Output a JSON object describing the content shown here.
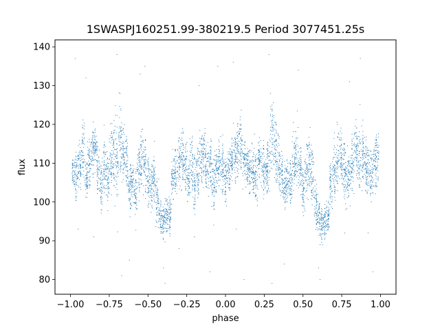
{
  "chart_data": {
    "type": "scatter",
    "title": "1SWASPJ160251.99-380219.5 Period 3077451.25s",
    "xlabel": "phase",
    "ylabel": "flux",
    "xlim": [
      -1.1,
      1.1
    ],
    "ylim": [
      76.2,
      141.8
    ],
    "x_ticks": [
      -1.0,
      -0.75,
      -0.5,
      -0.25,
      0.0,
      0.25,
      0.5,
      0.75,
      1.0
    ],
    "x_tick_labels": [
      "−1.00",
      "−0.75",
      "−0.50",
      "−0.25",
      "0.00",
      "0.25",
      "0.50",
      "0.75",
      "1.00"
    ],
    "y_ticks": [
      80,
      90,
      100,
      110,
      120,
      130,
      140
    ],
    "y_tick_labels": [
      "80",
      "90",
      "100",
      "110",
      "120",
      "130",
      "140"
    ],
    "grid": false,
    "legend": "none",
    "marker_color": "#1f77b4",
    "series": [
      {
        "x": [
          -0.98,
          -0.96,
          -0.94,
          -0.92,
          -0.9,
          -0.88,
          -0.86,
          -0.84,
          -0.82,
          -0.8,
          -0.78,
          -0.76,
          -0.74,
          -0.72,
          -0.7,
          -0.68,
          -0.66,
          -0.64,
          -0.62,
          -0.6,
          -0.58,
          -0.56,
          -0.54,
          -0.52,
          -0.5,
          -0.48,
          -0.46,
          -0.44,
          -0.42,
          -0.4,
          -0.38,
          -0.36,
          -0.34,
          -0.32,
          -0.3,
          -0.28,
          -0.26,
          -0.24,
          -0.22,
          -0.2,
          -0.18,
          -0.16,
          -0.14,
          -0.12,
          -0.1,
          -0.08,
          -0.06,
          -0.04,
          -0.02,
          0.0,
          0.02,
          0.04,
          0.06,
          0.08,
          0.1,
          0.12,
          0.14,
          0.16,
          0.18,
          0.2,
          0.22,
          0.24,
          0.26,
          0.28,
          0.3,
          0.32,
          0.34,
          0.36,
          0.38,
          0.4,
          0.42,
          0.44,
          0.46,
          0.48,
          0.5,
          0.52,
          0.54,
          0.56,
          0.58,
          0.6,
          0.62,
          0.64,
          0.66,
          0.68,
          0.7,
          0.72,
          0.74,
          0.76,
          0.78,
          0.8,
          0.82,
          0.84,
          0.86,
          0.88,
          0.9,
          0.92,
          0.94,
          0.96,
          0.98
        ],
        "y": [
          108,
          107,
          109,
          114,
          106,
          110,
          113,
          115,
          108,
          104,
          109,
          106,
          111,
          113,
          110,
          116,
          112,
          110,
          104,
          105,
          102,
          107,
          112,
          109,
          105,
          104,
          106,
          100,
          96,
          95,
          97,
          96,
          106,
          108,
          110,
          111,
          109,
          106,
          110,
          104,
          107,
          111,
          112,
          109,
          110,
          105,
          108,
          110,
          109,
          106,
          108,
          111,
          112,
          113,
          115,
          110,
          109,
          108,
          107,
          106,
          111,
          109,
          108,
          110,
          117,
          113,
          110,
          107,
          104,
          106,
          105,
          110,
          111,
          108,
          103,
          108,
          110,
          107,
          100,
          96,
          94,
          95,
          96,
          104,
          108,
          110,
          112,
          109,
          106,
          107,
          109,
          113,
          111,
          112,
          110,
          108,
          107,
          109,
          111
        ],
        "spread": [
          4,
          6,
          5,
          6,
          4,
          5,
          5,
          4,
          5,
          6,
          6,
          5,
          7,
          9,
          8,
          7,
          6,
          6,
          5,
          5,
          5,
          6,
          7,
          6,
          6,
          5,
          5,
          5,
          4,
          4,
          4,
          4,
          5,
          5,
          6,
          6,
          5,
          5,
          6,
          7,
          6,
          5,
          5,
          5,
          6,
          6,
          5,
          5,
          6,
          5,
          5,
          5,
          6,
          6,
          6,
          5,
          5,
          5,
          5,
          5,
          5,
          5,
          5,
          6,
          8,
          7,
          6,
          5,
          5,
          5,
          5,
          6,
          6,
          6,
          5,
          6,
          6,
          6,
          5,
          4,
          4,
          4,
          4,
          5,
          6,
          6,
          6,
          6,
          6,
          5,
          6,
          6,
          6,
          6,
          6,
          5,
          5,
          6,
          6
        ]
      }
    ],
    "outliers": [
      {
        "x": -0.97,
        "y": 137
      },
      {
        "x": -0.95,
        "y": 93
      },
      {
        "x": -0.9,
        "y": 132
      },
      {
        "x": -0.85,
        "y": 91
      },
      {
        "x": -0.7,
        "y": 138
      },
      {
        "x": -0.68,
        "y": 128
      },
      {
        "x": -0.67,
        "y": 81
      },
      {
        "x": -0.62,
        "y": 85
      },
      {
        "x": -0.55,
        "y": 133
      },
      {
        "x": -0.52,
        "y": 135
      },
      {
        "x": -0.4,
        "y": 83
      },
      {
        "x": -0.39,
        "y": 79
      },
      {
        "x": -0.3,
        "y": 88
      },
      {
        "x": -0.2,
        "y": 91
      },
      {
        "x": -0.17,
        "y": 130
      },
      {
        "x": -0.1,
        "y": 82
      },
      {
        "x": -0.05,
        "y": 135
      },
      {
        "x": 0.05,
        "y": 136
      },
      {
        "x": 0.07,
        "y": 93
      },
      {
        "x": 0.12,
        "y": 80
      },
      {
        "x": 0.28,
        "y": 138
      },
      {
        "x": 0.29,
        "y": 128
      },
      {
        "x": 0.3,
        "y": 79
      },
      {
        "x": 0.38,
        "y": 84
      },
      {
        "x": 0.47,
        "y": 134
      },
      {
        "x": 0.6,
        "y": 83
      },
      {
        "x": 0.61,
        "y": 80
      },
      {
        "x": 0.77,
        "y": 92
      },
      {
        "x": 0.8,
        "y": 131
      },
      {
        "x": 0.87,
        "y": 137
      },
      {
        "x": 0.92,
        "y": 92
      },
      {
        "x": 0.95,
        "y": 82
      }
    ]
  }
}
